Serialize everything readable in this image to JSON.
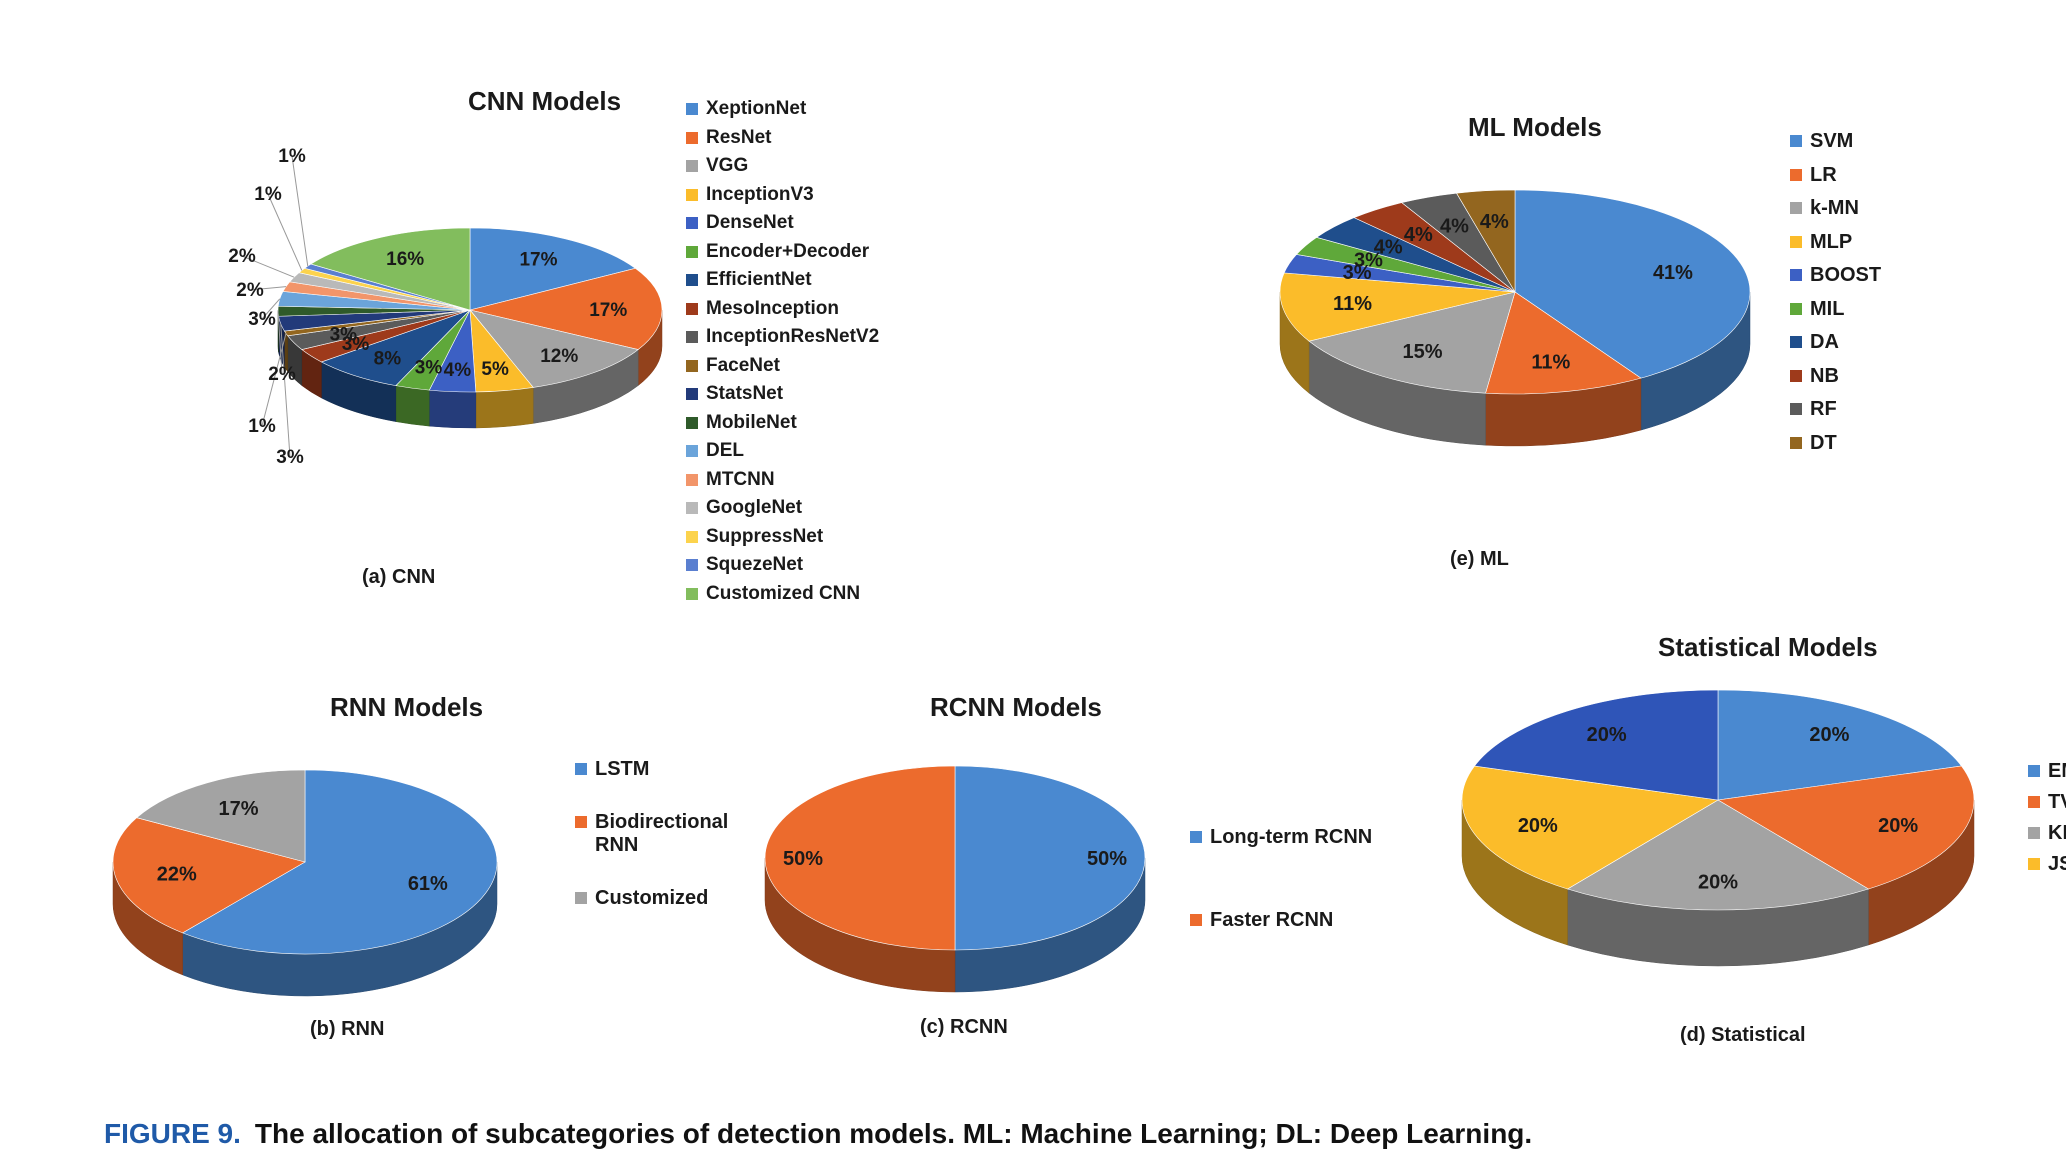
{
  "figure_caption": {
    "label": "FIGURE 9.",
    "text": "The allocation of subcategories of detection models. ML: Machine Learning; DL: Deep Learning."
  },
  "chart_data": [
    {
      "id": "cnn",
      "type": "pie",
      "title": "CNN Models",
      "caption": "(a) CNN",
      "slices": [
        {
          "label": "XeptionNet",
          "value": 17,
          "display": "17%",
          "color": "#4a89d0"
        },
        {
          "label": "ResNet",
          "value": 17,
          "display": "17%",
          "color": "#ec6b2d"
        },
        {
          "label": "VGG",
          "value": 12,
          "display": "12%",
          "color": "#a3a3a3"
        },
        {
          "label": "InceptionV3",
          "value": 5,
          "display": "5%",
          "color": "#fbbc2a"
        },
        {
          "label": "DenseNet",
          "value": 4,
          "display": "4%",
          "color": "#3c60c4"
        },
        {
          "label": "Encoder+Decoder",
          "value": 3,
          "display": "3%",
          "color": "#5fa83a"
        },
        {
          "label": "EfficientNet",
          "value": 8,
          "display": "8%",
          "color": "#1f4e8c"
        },
        {
          "label": "MesoInception",
          "value": 3,
          "display": "3%",
          "color": "#9e3a1b"
        },
        {
          "label": "InceptionResNetV2",
          "value": 3,
          "display": "3%",
          "color": "#5b5b5b"
        },
        {
          "label": "FaceNet",
          "value": 1,
          "display": "1%",
          "color": "#93661f"
        },
        {
          "label": "StatsNet",
          "value": 3,
          "display": "3%",
          "color": "#223a7a"
        },
        {
          "label": "MobileNet",
          "value": 2,
          "display": "2%",
          "color": "#2f5a2a"
        },
        {
          "label": "DEL",
          "value": 3,
          "display": "3%",
          "color": "#6ba4da"
        },
        {
          "label": "MTCNN",
          "value": 2,
          "display": "2%",
          "color": "#f2956a"
        },
        {
          "label": "GoogleNet",
          "value": 2,
          "display": "2%",
          "color": "#b9b9b9"
        },
        {
          "label": "SuppressNet",
          "value": 1,
          "display": "1%",
          "color": "#fcd34d"
        },
        {
          "label": "SquezeNet",
          "value": 1,
          "display": "1%",
          "color": "#5a7fd0"
        },
        {
          "label": "Customized CNN",
          "value": 16,
          "display": "16%",
          "color": "#82bd5d"
        }
      ]
    },
    {
      "id": "ml",
      "type": "pie",
      "title": "ML Models",
      "caption": "(e) ML",
      "slices": [
        {
          "label": "SVM",
          "value": 41,
          "display": "41%",
          "color": "#4a89d0"
        },
        {
          "label": "LR",
          "value": 11,
          "display": "11%",
          "color": "#ec6b2d"
        },
        {
          "label": "k-MN",
          "value": 15,
          "display": "15%",
          "color": "#a3a3a3"
        },
        {
          "label": "MLP",
          "value": 11,
          "display": "11%",
          "color": "#fbbc2a"
        },
        {
          "label": "BOOST",
          "value": 3,
          "display": "3%",
          "color": "#3c60c4"
        },
        {
          "label": "MIL",
          "value": 3,
          "display": "3%",
          "color": "#5fa83a"
        },
        {
          "label": "DA",
          "value": 4,
          "display": "4%",
          "color": "#1f4e8c"
        },
        {
          "label": "NB",
          "value": 4,
          "display": "4%",
          "color": "#9e3a1b"
        },
        {
          "label": "RF",
          "value": 4,
          "display": "4%",
          "color": "#5b5b5b"
        },
        {
          "label": "DT",
          "value": 4,
          "display": "4%",
          "color": "#93661f"
        }
      ]
    },
    {
      "id": "rnn",
      "type": "pie",
      "title": "RNN Models",
      "caption": "(b) RNN",
      "slices": [
        {
          "label": "LSTM",
          "value": 61,
          "display": "61%",
          "color": "#4a89d0"
        },
        {
          "label": "Biodirectional RNN",
          "value": 22,
          "display": "22%",
          "color": "#ec6b2d"
        },
        {
          "label": "Customized",
          "value": 17,
          "display": "17%",
          "color": "#a3a3a3"
        }
      ]
    },
    {
      "id": "rcnn",
      "type": "pie",
      "title": "RCNN Models",
      "caption": "(c) RCNN",
      "slices": [
        {
          "label": "Long-term RCNN",
          "value": 50,
          "display": "50%",
          "color": "#4a89d0"
        },
        {
          "label": "Faster RCNN",
          "value": 50,
          "display": "50%",
          "color": "#ec6b2d"
        }
      ]
    },
    {
      "id": "stat",
      "type": "pie",
      "title": "Statistical Models",
      "caption": "(d) Statistical",
      "slices": [
        {
          "label": "EM",
          "value": 20,
          "display": "20%",
          "color": "#4a89d0"
        },
        {
          "label": "TV",
          "value": 20,
          "display": "20%",
          "color": "#ec6b2d"
        },
        {
          "label": "KL",
          "value": 20,
          "display": "20%",
          "color": "#a3a3a3"
        },
        {
          "label": "JS",
          "value": 20,
          "display": "20%",
          "color": "#fbbc2a"
        },
        {
          "label": "",
          "value": 20,
          "display": "20%",
          "color": "#2f55b8"
        }
      ]
    }
  ]
}
